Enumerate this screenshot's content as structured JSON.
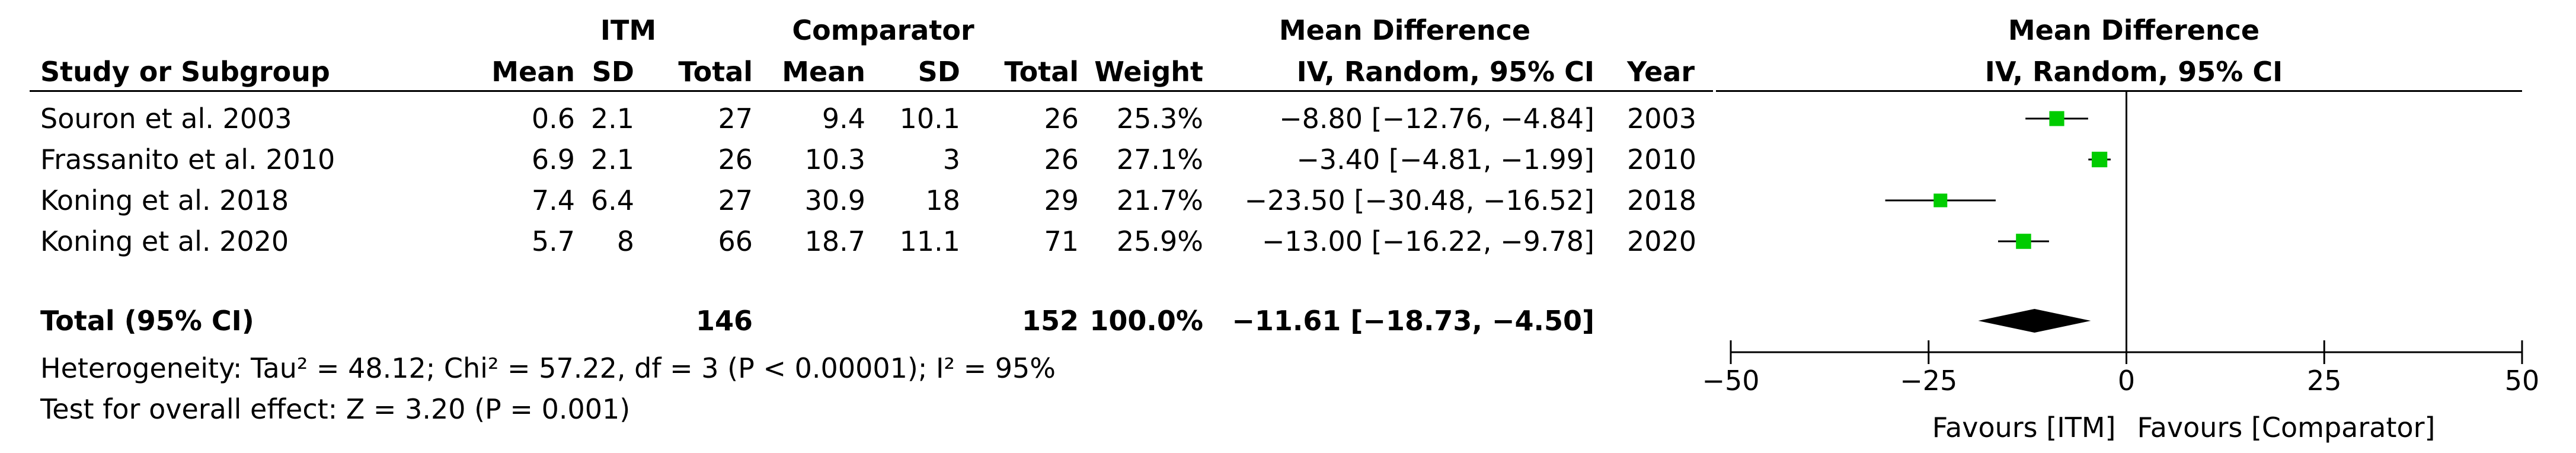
{
  "header": {
    "itm_group": "ITM",
    "comparator_group": "Comparator",
    "md_title": "Mean Difference",
    "md_subtitle": "IV, Random, 95% CI",
    "col_study": "Study or Subgroup",
    "col_mean": "Mean",
    "col_sd": "SD",
    "col_total": "Total",
    "col_weight": "Weight",
    "col_year": "Year",
    "plot_title": "Mean Difference",
    "plot_subtitle": "IV, Random, 95% CI"
  },
  "rows": [
    {
      "study": "Souron et al. 2003",
      "itm_mean": "0.6",
      "itm_sd": "2.1",
      "itm_total": "27",
      "comp_mean": "9.4",
      "comp_sd": "10.1",
      "comp_total": "26",
      "weight": "25.3%",
      "ci": "−8.80 [−12.76, −4.84]",
      "year": "2003"
    },
    {
      "study": "Frassanito et al. 2010",
      "itm_mean": "6.9",
      "itm_sd": "2.1",
      "itm_total": "26",
      "comp_mean": "10.3",
      "comp_sd": "3",
      "comp_total": "26",
      "weight": "27.1%",
      "ci": "−3.40 [−4.81, −1.99]",
      "year": "2010"
    },
    {
      "study": "Koning et al. 2018",
      "itm_mean": "7.4",
      "itm_sd": "6.4",
      "itm_total": "27",
      "comp_mean": "30.9",
      "comp_sd": "18",
      "comp_total": "29",
      "weight": "21.7%",
      "ci": "−23.50 [−30.48, −16.52]",
      "year": "2018"
    },
    {
      "study": "Koning et al. 2020",
      "itm_mean": "5.7",
      "itm_sd": "8",
      "itm_total": "66",
      "comp_mean": "18.7",
      "comp_sd": "11.1",
      "comp_total": "71",
      "weight": "25.9%",
      "ci": "−13.00 [−16.22, −9.78]",
      "year": "2020"
    }
  ],
  "total": {
    "label": "Total (95% CI)",
    "itm_total": "146",
    "comp_total": "152",
    "weight": "100.0%",
    "ci": "−11.61 [−18.73, −4.50]"
  },
  "footer": {
    "heterogeneity": "Heterogeneity: Tau² = 48.12; Chi² = 57.22, df = 3 (P < 0.00001); I² = 95%",
    "overall_effect": "Test for overall effect: Z = 3.20 (P = 0.001)"
  },
  "chart_data": {
    "type": "forest",
    "xlim": [
      -50,
      50
    ],
    "xticks": [
      -50,
      -25,
      0,
      25,
      50
    ],
    "xtick_labels": [
      "−50",
      "−25",
      "0",
      "25",
      "50"
    ],
    "favours_left": "Favours [ITM]",
    "favours_right": "Favours [Comparator]",
    "marker_color": "#00cc00",
    "studies": [
      {
        "md": -8.8,
        "lo": -12.76,
        "hi": -4.84,
        "weight": 25.3
      },
      {
        "md": -3.4,
        "lo": -4.81,
        "hi": -1.99,
        "weight": 27.1
      },
      {
        "md": -23.5,
        "lo": -30.48,
        "hi": -16.52,
        "weight": 21.7
      },
      {
        "md": -13.0,
        "lo": -16.22,
        "hi": -9.78,
        "weight": 25.9
      }
    ],
    "pooled": {
      "md": -11.61,
      "lo": -18.73,
      "hi": -4.5
    }
  }
}
